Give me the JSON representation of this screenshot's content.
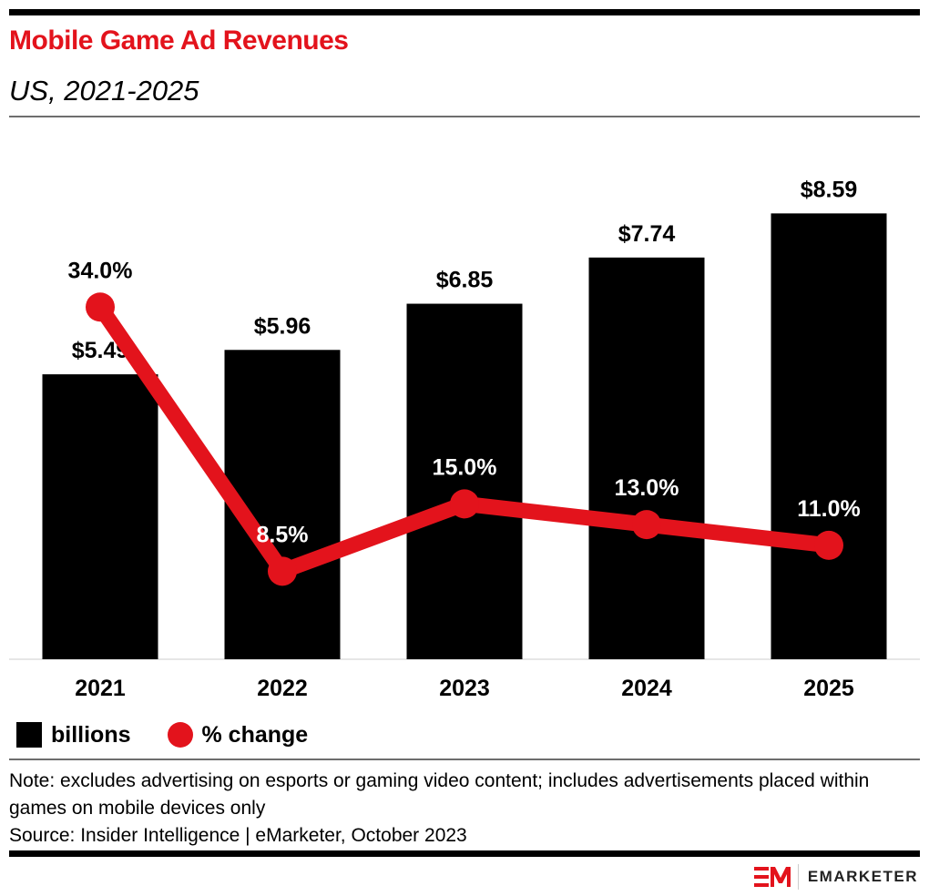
{
  "header": {
    "title": "Mobile Game Ad Revenues",
    "subtitle": "US, 2021-2025"
  },
  "colors": {
    "title": "#e3131c",
    "bars": "#000000",
    "line": "#e3131c"
  },
  "chart_data": {
    "type": "bar+line",
    "title": "Mobile Game Ad Revenues",
    "subtitle": "US, 2021-2025",
    "categories": [
      "2021",
      "2022",
      "2023",
      "2024",
      "2025"
    ],
    "series": [
      {
        "name": "billions",
        "type": "bar",
        "values": [
          5.49,
          5.96,
          6.85,
          7.74,
          8.59
        ],
        "labels": [
          "$5.49",
          "$5.96",
          "$6.85",
          "$7.74",
          "$8.59"
        ],
        "color": "#000000"
      },
      {
        "name": "% change",
        "type": "line",
        "values": [
          34.0,
          8.5,
          15.0,
          13.0,
          11.0
        ],
        "labels": [
          "34.0%",
          "8.5%",
          "15.0%",
          "13.0%",
          "11.0%"
        ],
        "color": "#e3131c"
      }
    ],
    "bar_axis_range": [
      0,
      10
    ],
    "line_axis_range": [
      0,
      40
    ],
    "grid": false,
    "xlabel": "",
    "ylabel": "",
    "legend": "bottom-left"
  },
  "legend": {
    "items": [
      {
        "label": "billions",
        "marker": "square"
      },
      {
        "label": "% change",
        "marker": "circle"
      }
    ]
  },
  "footer": {
    "note": "Note: excludes advertising on esports or gaming video content; includes advertisements placed within games on mobile devices only",
    "source": "Source: Insider Intelligence | eMarketer, October 2023",
    "brand": "EMARKETER"
  }
}
